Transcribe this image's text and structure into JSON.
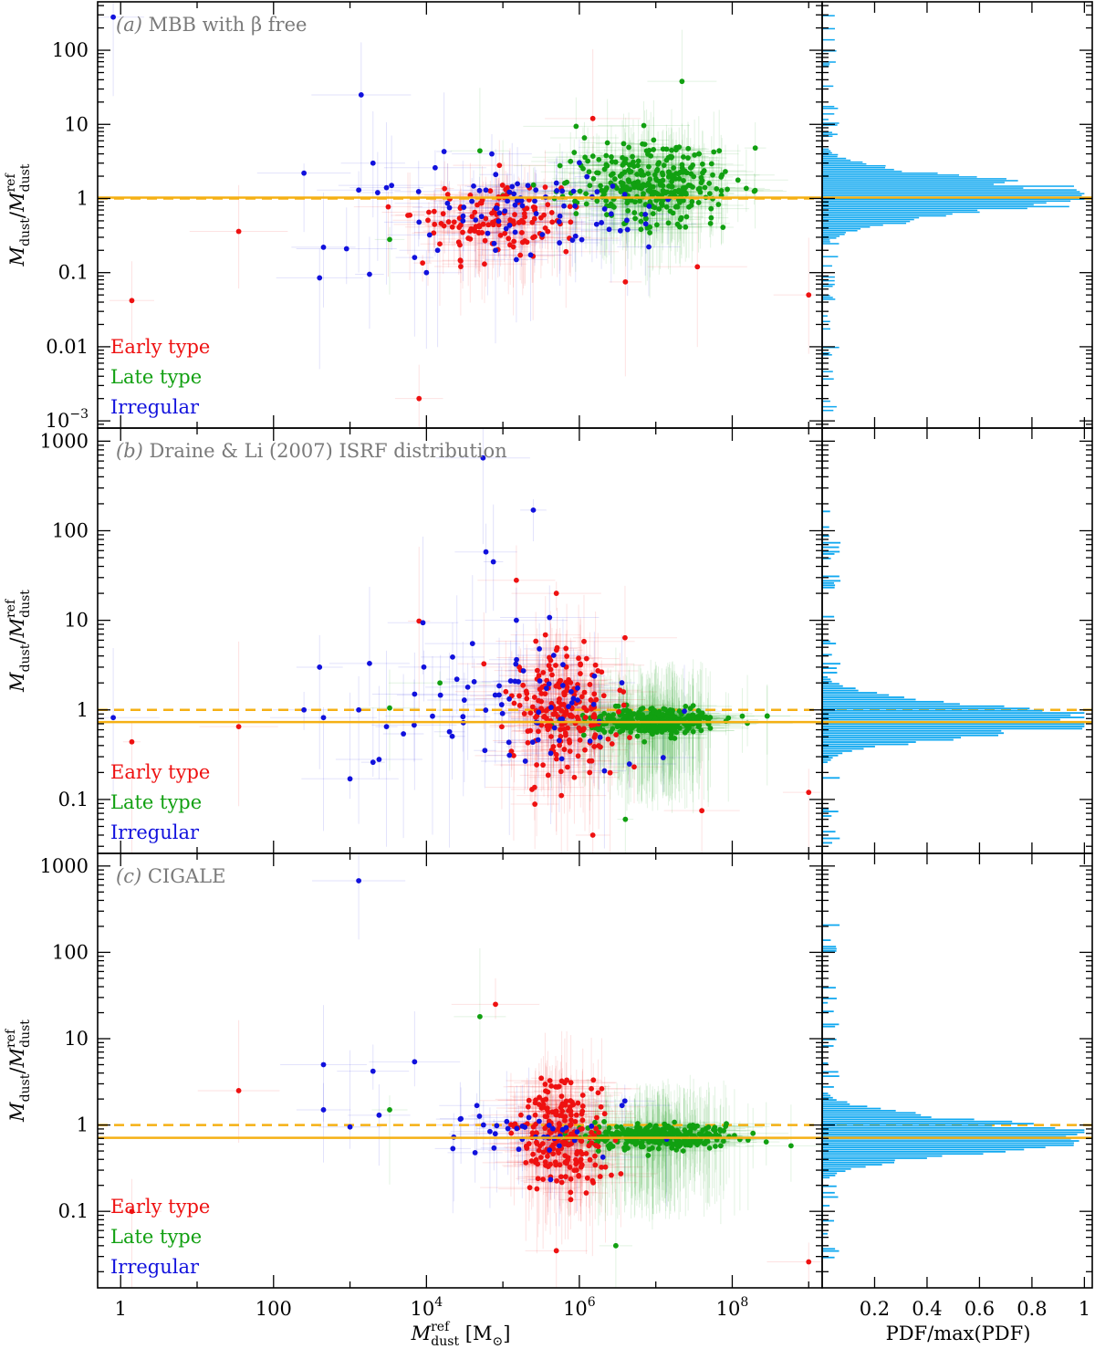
{
  "chart_data": {
    "type": "scatter",
    "colors": {
      "early": "#ee1111",
      "late": "#11a011",
      "irregular": "#1111dd",
      "ref_line": "#f5b014",
      "histogram": "#10a8f0",
      "panel_label": "#7a7a7a"
    },
    "xscale": "log",
    "xlim": [
      0.5,
      1500000000
    ],
    "x_ticks": [
      {
        "value": 1,
        "label": "1"
      },
      {
        "value": 100,
        "label": "100"
      },
      {
        "value": 10000,
        "base": "10",
        "exp": "4"
      },
      {
        "value": 1000000,
        "base": "10",
        "exp": "6"
      },
      {
        "value": 100000000,
        "base": "10",
        "exp": "8"
      }
    ],
    "xlabel": {
      "sym": "M",
      "sup": "ref",
      "sub": "dust",
      "unit": "[M",
      "unit_sub": "⊙",
      "unit_end": "]"
    },
    "ylabel": {
      "num": "M",
      "num_sub": "dust",
      "sep": "/",
      "den": "M",
      "den_sup": "ref",
      "den_sub": "dust"
    },
    "hist_xlabel": "PDF/max(PDF)",
    "hist_xlim": [
      0,
      1.03
    ],
    "hist_x_ticks": [
      "0.2",
      "0.4",
      "0.6",
      "0.8",
      "1"
    ],
    "legend": [
      "Early type",
      "Late type",
      "Irregular"
    ],
    "panels": [
      {
        "id": "a",
        "label_letter": "(a)",
        "label_text": "MBB with β free",
        "ylim": [
          0.0008,
          450
        ],
        "y_ticks": [
          {
            "value": 0.001,
            "base": "10",
            "exp": "−3"
          },
          {
            "value": 0.01,
            "label": "0.01"
          },
          {
            "value": 0.1,
            "label": "0.1"
          },
          {
            "value": 1,
            "label": "1"
          },
          {
            "value": 10,
            "label": "10"
          },
          {
            "value": 100,
            "label": "100"
          }
        ],
        "solid_line": 1.03,
        "dashed_line": 1.0,
        "outliers": {
          "early": [
            [
              1.4,
              0.042
            ],
            [
              35,
              0.36
            ],
            [
              8000,
              0.002
            ],
            [
              90000,
              2.8
            ],
            [
              1500000,
              12
            ],
            [
              4000000,
              0.075
            ],
            [
              35000000,
              0.12
            ],
            [
              1000000000,
              0.05
            ]
          ],
          "late": [
            [
              3300,
              0.28
            ],
            [
              50000,
              4.4
            ],
            [
              100000,
              1.1
            ],
            [
              22000000,
              38
            ],
            [
              200000000,
              4.8
            ]
          ],
          "irregular": [
            [
              0.8,
              280
            ],
            [
              250,
              2.2
            ],
            [
              400,
              0.085
            ],
            [
              450,
              0.22
            ],
            [
              900,
              0.21
            ],
            [
              1300,
              1.3
            ],
            [
              1400,
              25
            ],
            [
              1800,
              0.095
            ],
            [
              2000,
              3.0
            ],
            [
              2300,
              1.2
            ],
            [
              3000,
              1.4
            ],
            [
              3500,
              1.5
            ],
            [
              7000,
              0.16
            ],
            [
              8000,
              0.48
            ],
            [
              10000,
              0.1
            ],
            [
              13000,
              2.6
            ],
            [
              14000,
              0.2
            ],
            [
              17000,
              4.3
            ],
            [
              20000,
              0.75
            ],
            [
              30000,
              0.5
            ],
            [
              60000,
              1.3
            ],
            [
              80000,
              0.2
            ],
            [
              150000,
              0.15
            ]
          ]
        },
        "clusters": [
          {
            "cls": "early",
            "n": 130,
            "x": [
              4.9,
              0.5
            ],
            "y": [
              -0.3,
              0.25
            ],
            "seed": 11
          },
          {
            "cls": "late",
            "n": 320,
            "x": [
              6.95,
              0.5
            ],
            "y": [
              0.2,
              0.25
            ],
            "seed": 12
          },
          {
            "cls": "irregular",
            "n": 70,
            "x": [
              5.6,
              0.7
            ],
            "y": [
              -0.1,
              0.28
            ],
            "seed": 13
          }
        ],
        "histogram": {
          "center": 0.02,
          "sigma": 0.23,
          "ymin": -2.9,
          "ymax": 2.5,
          "seed": 21
        }
      },
      {
        "id": "b",
        "label_letter": "(b)",
        "label_text": "Draine & Li (2007) ISRF distribution",
        "ylim": [
          0.025,
          1400
        ],
        "y_ticks": [
          {
            "value": 0.1,
            "label": "0.1"
          },
          {
            "value": 1,
            "label": "1"
          },
          {
            "value": 10,
            "label": "10"
          },
          {
            "value": 100,
            "label": "100"
          },
          {
            "value": 1000,
            "label": "1000"
          }
        ],
        "solid_line": 0.73,
        "dashed_line": 1.0,
        "outliers": {
          "early": [
            [
              1.4,
              0.44
            ],
            [
              35,
              0.65
            ],
            [
              8000,
              9.8
            ],
            [
              150000,
              28
            ],
            [
              500000,
              20
            ],
            [
              1500000,
              0.04
            ],
            [
              40000000,
              0.075
            ],
            [
              1000000000,
              0.12
            ]
          ],
          "late": [
            [
              3300,
              1.05
            ],
            [
              15000,
              2.0
            ],
            [
              4000000,
              0.06
            ],
            [
              3000000,
              1.1
            ]
          ],
          "irregular": [
            [
              0.8,
              0.82
            ],
            [
              250,
              1.0
            ],
            [
              400,
              3.0
            ],
            [
              450,
              0.82
            ],
            [
              1000,
              0.17
            ],
            [
              1300,
              1.0
            ],
            [
              1800,
              3.3
            ],
            [
              2000,
              0.26
            ],
            [
              2400,
              0.28
            ],
            [
              3000,
              0.65
            ],
            [
              5000,
              0.54
            ],
            [
              7000,
              1.5
            ],
            [
              9000,
              9.4
            ],
            [
              12000,
              0.85
            ],
            [
              20000,
              0.57
            ],
            [
              25000,
              2.2
            ],
            [
              30000,
              0.84
            ],
            [
              40000,
              5.5
            ],
            [
              55000,
              650
            ],
            [
              60000,
              58
            ],
            [
              75000,
              45
            ],
            [
              150000,
              10
            ],
            [
              250000,
              170
            ],
            [
              300000,
              4.8
            ],
            [
              800000,
              1.2
            ]
          ]
        },
        "clusters": [
          {
            "cls": "early",
            "n": 200,
            "x": [
              5.8,
              0.35
            ],
            "y": [
              0.0,
              0.35
            ],
            "seed": 31
          },
          {
            "cls": "late",
            "n": 320,
            "x": [
              7.0,
              0.5
            ],
            "y": [
              -0.14,
              0.07
            ],
            "seed": 32
          },
          {
            "cls": "irregular",
            "n": 60,
            "x": [
              5.3,
              0.7
            ],
            "y": [
              0.0,
              0.35
            ],
            "seed": 33
          }
        ],
        "histogram": {
          "center": -0.13,
          "sigma": 0.17,
          "ymin": -1.5,
          "ymax": 2.2,
          "seed": 41
        }
      },
      {
        "id": "c",
        "label_letter": "(c)",
        "label_text": "CIGALE",
        "ylim": [
          0.013,
          1400
        ],
        "y_ticks": [
          {
            "value": 0.1,
            "label": "0.1"
          },
          {
            "value": 1,
            "label": "1"
          },
          {
            "value": 10,
            "label": "10"
          },
          {
            "value": 100,
            "label": "100"
          },
          {
            "value": 1000,
            "label": "1000"
          }
        ],
        "solid_line": 0.71,
        "dashed_line": 1.0,
        "outliers": {
          "early": [
            [
              35,
              2.5
            ],
            [
              1.4,
              0.1
            ],
            [
              80000,
              25
            ],
            [
              500000,
              0.035
            ],
            [
              1000000000,
              0.026
            ]
          ],
          "late": [
            [
              3300,
              1.5
            ],
            [
              50000,
              18
            ],
            [
              3000000,
              0.04
            ]
          ],
          "irregular": [
            [
              450,
              5.0
            ],
            [
              450,
              1.5
            ],
            [
              1000,
              0.95
            ],
            [
              1300,
              675
            ],
            [
              2000,
              4.2
            ],
            [
              2400,
              1.3
            ],
            [
              7000,
              5.4
            ]
          ]
        },
        "clusters": [
          {
            "cls": "early",
            "n": 220,
            "x": [
              5.75,
              0.28
            ],
            "y": [
              -0.1,
              0.3
            ],
            "seed": 51
          },
          {
            "cls": "late",
            "n": 320,
            "x": [
              7.0,
              0.45
            ],
            "y": [
              -0.13,
              0.07
            ],
            "seed": 52
          },
          {
            "cls": "irregular",
            "n": 40,
            "x": [
              5.5,
              0.6
            ],
            "y": [
              -0.1,
              0.15
            ],
            "seed": 53
          }
        ],
        "histogram": {
          "center": -0.15,
          "sigma": 0.18,
          "ymin": -1.7,
          "ymax": 2.3,
          "seed": 61
        }
      }
    ]
  }
}
